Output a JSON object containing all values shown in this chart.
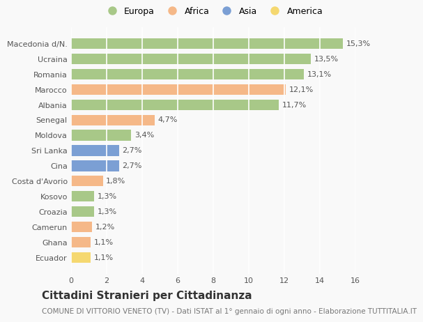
{
  "categories": [
    "Macedonia d/N.",
    "Ucraina",
    "Romania",
    "Marocco",
    "Albania",
    "Senegal",
    "Moldova",
    "Sri Lanka",
    "Cina",
    "Costa d'Avorio",
    "Kosovo",
    "Croazia",
    "Camerun",
    "Ghana",
    "Ecuador"
  ],
  "values": [
    15.3,
    13.5,
    13.1,
    12.1,
    11.7,
    4.7,
    3.4,
    2.7,
    2.7,
    1.8,
    1.3,
    1.3,
    1.2,
    1.1,
    1.1
  ],
  "labels": [
    "15,3%",
    "13,5%",
    "13,1%",
    "12,1%",
    "11,7%",
    "4,7%",
    "3,4%",
    "2,7%",
    "2,7%",
    "1,8%",
    "1,3%",
    "1,3%",
    "1,2%",
    "1,1%",
    "1,1%"
  ],
  "colors": [
    "#a8c888",
    "#a8c888",
    "#a8c888",
    "#f5b888",
    "#a8c888",
    "#f5b888",
    "#a8c888",
    "#7b9fd4",
    "#7b9fd4",
    "#f5b888",
    "#a8c888",
    "#a8c888",
    "#f5b888",
    "#f5b888",
    "#f5d870"
  ],
  "legend_labels": [
    "Europa",
    "Africa",
    "Asia",
    "America"
  ],
  "legend_colors": [
    "#a8c888",
    "#f5b888",
    "#7b9fd4",
    "#f5d870"
  ],
  "title": "Cittadini Stranieri per Cittadinanza",
  "subtitle": "COMUNE DI VITTORIO VENETO (TV) - Dati ISTAT al 1° gennaio di ogni anno - Elaborazione TUTTITALIA.IT",
  "xlim": [
    0,
    16
  ],
  "xticks": [
    0,
    2,
    4,
    6,
    8,
    10,
    12,
    14,
    16
  ],
  "background_color": "#f9f9f9",
  "grid_color": "#ffffff",
  "bar_height": 0.7,
  "title_fontsize": 11,
  "subtitle_fontsize": 7.5,
  "tick_fontsize": 8,
  "label_fontsize": 8,
  "legend_fontsize": 9
}
